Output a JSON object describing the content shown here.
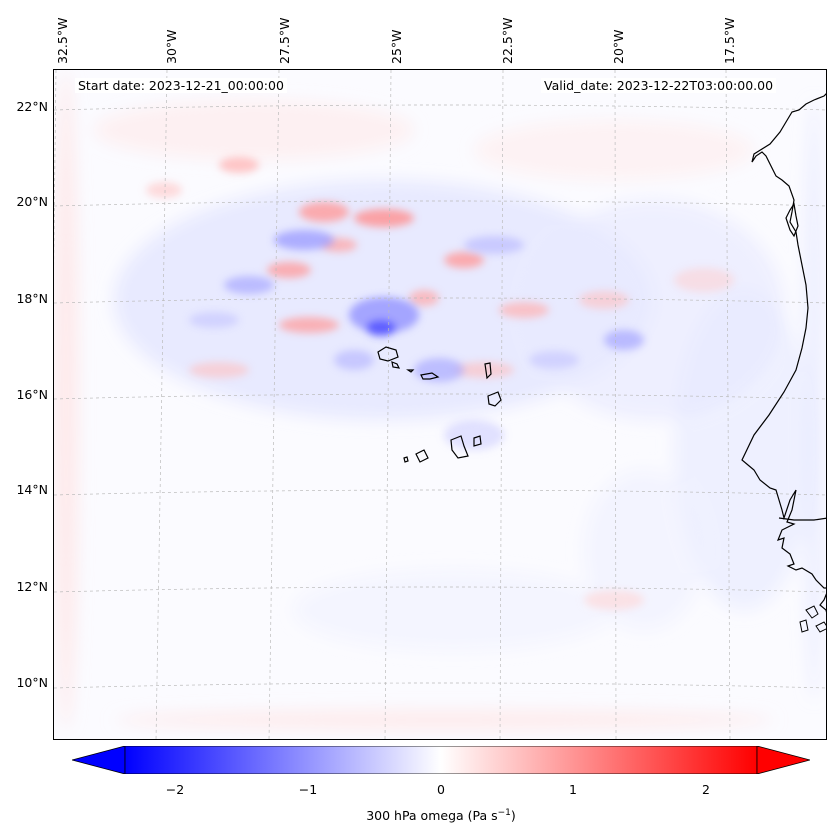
{
  "header": {
    "start_date": "Start date: 2023-12-21_00:00:00",
    "valid_date": "Valid_date: 2023-12-22T03:00:00.00"
  },
  "longitude_labels": [
    "32.5°W",
    "30°W",
    "27.5°W",
    "25°W",
    "22.5°W",
    "20°W",
    "17.5°W"
  ],
  "latitude_labels": [
    "22°N",
    "20°N",
    "18°N",
    "16°N",
    "14°N",
    "12°N",
    "10°N"
  ],
  "colorbar": {
    "label_prefix": "300 hPa omega (Pa s",
    "label_exp": "−1",
    "label_suffix": ")",
    "ticks": [
      "−2",
      "−1",
      "0",
      "1",
      "2"
    ],
    "min": -2.5,
    "max": 2.5,
    "negative_color": "#0000ff",
    "positive_color": "#ff0000",
    "neutral_color": "#ffffff"
  },
  "map": {
    "coastline_color": "#000000",
    "gridline_color": "#bbbbbb"
  }
}
